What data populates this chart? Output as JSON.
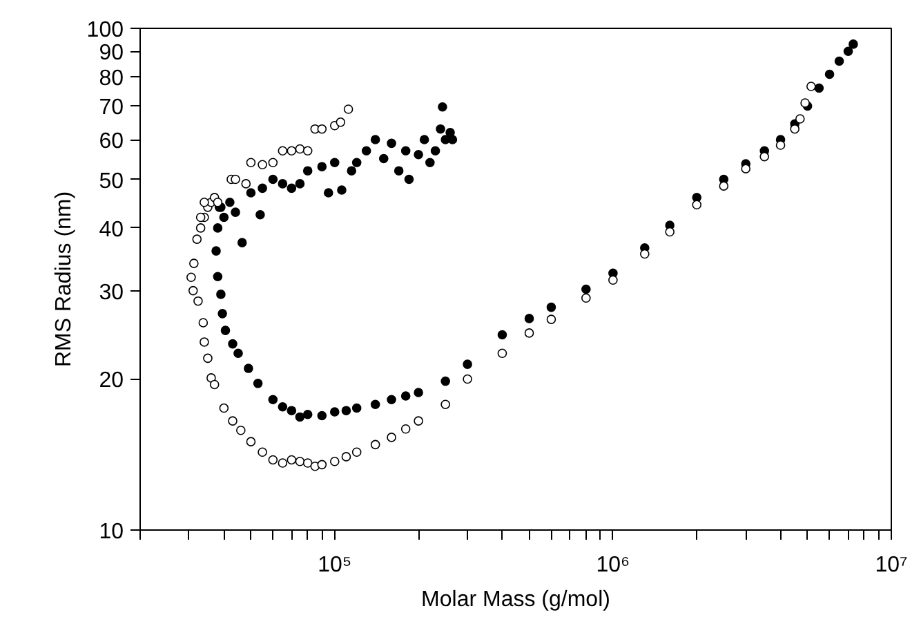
{
  "chart_data": {
    "type": "scatter",
    "xlabel": "Molar Mass (g/mol)",
    "ylabel": "RMS Radius (nm)",
    "log": "xy",
    "grid": false,
    "marker": "circle",
    "xlim": [
      20000,
      10000000
    ],
    "ylim": [
      10,
      100
    ],
    "xticks": [
      {
        "value": 20000,
        "label": null
      },
      {
        "value": 30000,
        "label": null
      },
      {
        "value": 40000,
        "label": null
      },
      {
        "value": 50000,
        "label": null
      },
      {
        "value": 60000,
        "label": null
      },
      {
        "value": 70000,
        "label": null
      },
      {
        "value": 80000,
        "label": null
      },
      {
        "value": 90000,
        "label": null
      },
      {
        "value": 100000,
        "label": "10⁵"
      },
      {
        "value": 200000,
        "label": null
      },
      {
        "value": 300000,
        "label": null
      },
      {
        "value": 400000,
        "label": null
      },
      {
        "value": 500000,
        "label": null
      },
      {
        "value": 600000,
        "label": null
      },
      {
        "value": 700000,
        "label": null
      },
      {
        "value": 800000,
        "label": null
      },
      {
        "value": 900000,
        "label": null
      },
      {
        "value": 1000000,
        "label": "10⁶"
      },
      {
        "value": 2000000,
        "label": null
      },
      {
        "value": 3000000,
        "label": null
      },
      {
        "value": 4000000,
        "label": null
      },
      {
        "value": 5000000,
        "label": null
      },
      {
        "value": 6000000,
        "label": null
      },
      {
        "value": 7000000,
        "label": null
      },
      {
        "value": 8000000,
        "label": null
      },
      {
        "value": 9000000,
        "label": null
      },
      {
        "value": 10000000,
        "label": "10⁷"
      }
    ],
    "yticks": [
      10,
      20,
      30,
      40,
      50,
      60,
      70,
      80,
      90,
      100
    ],
    "series": [
      {
        "color": "#000000",
        "x": [
          39000,
          40000,
          42000,
          44000,
          46500,
          50000,
          54000,
          55000,
          60000,
          65000,
          70000,
          75000,
          80000,
          90000,
          95000,
          100000,
          106000,
          115000,
          120000,
          130000,
          140000,
          150000,
          160000,
          170000,
          180000,
          185000,
          200000,
          210000,
          220000,
          230000,
          240000,
          244000,
          250000,
          260000,
          265000,
          38500,
          38000,
          37500,
          38000,
          39000,
          39500,
          40500,
          43000,
          45000,
          49000,
          53000,
          60000,
          65000,
          70000,
          75000,
          80000,
          90000,
          100000,
          110000,
          120000,
          140000,
          160000,
          180000,
          200000,
          250000,
          300000,
          400000,
          500000,
          600000,
          800000,
          1000000,
          1300000,
          1600000,
          2000000,
          2500000,
          3000000,
          3500000,
          4000000,
          4500000,
          5000000,
          5500000,
          6000000,
          6500000,
          7000000,
          7300000
        ],
        "values": [
          44,
          42,
          45,
          43,
          37.4,
          47,
          42.5,
          48,
          50,
          49,
          48,
          49,
          52,
          53,
          47,
          54,
          47.6,
          52,
          54,
          57,
          60,
          55,
          59,
          52,
          57,
          50,
          56,
          60,
          54,
          57,
          63,
          69.7,
          60,
          62,
          60,
          44,
          40,
          36,
          32,
          29.5,
          27,
          25,
          23.5,
          22.5,
          21,
          19.6,
          18.2,
          17.6,
          17.3,
          16.8,
          17,
          16.9,
          17.2,
          17.3,
          17.5,
          17.8,
          18.2,
          18.5,
          18.8,
          19.8,
          21.4,
          24.5,
          26.4,
          27.8,
          30.2,
          32.5,
          36.5,
          40.5,
          46,
          50,
          53.7,
          57,
          60,
          64.5,
          70,
          76,
          81,
          86,
          90,
          93
        ]
      },
      {
        "color": "#ffffff",
        "x": [
          33000,
          34000,
          35000,
          36000,
          37000,
          38000,
          42500,
          44000,
          48000,
          50000,
          55000,
          60000,
          65000,
          70000,
          75000,
          80000,
          85000,
          90000,
          100000,
          105000,
          112000,
          34000,
          33000,
          32000,
          31200,
          30500,
          31000,
          32300,
          33700,
          34000,
          35000,
          36000,
          37000,
          40000,
          43000,
          46000,
          50000,
          55000,
          60000,
          65000,
          70000,
          75000,
          80000,
          85000,
          90000,
          100000,
          110000,
          120000,
          140000,
          160000,
          180000,
          200000,
          250000,
          300000,
          400000,
          500000,
          600000,
          800000,
          1000000,
          1300000,
          1600000,
          2000000,
          2500000,
          3000000,
          3500000,
          4000000,
          4500000,
          4700000,
          4900000,
          5150000
        ],
        "values": [
          40,
          42,
          44,
          45,
          46,
          45,
          50,
          50,
          49,
          54,
          53.5,
          54,
          57,
          57,
          57.5,
          57,
          63,
          63,
          64,
          65,
          69,
          45,
          42,
          38,
          34,
          31.9,
          30,
          28.6,
          25.9,
          23.7,
          22,
          20.1,
          19.5,
          17.5,
          16.5,
          15.8,
          15,
          14.3,
          13.8,
          13.6,
          13.8,
          13.7,
          13.6,
          13.4,
          13.5,
          13.7,
          14,
          14.3,
          14.8,
          15.3,
          15.9,
          16.5,
          17.8,
          20,
          22.5,
          24.7,
          26.3,
          29,
          31.5,
          35.5,
          39.3,
          44.5,
          48.5,
          52.5,
          55.5,
          58.5,
          63,
          66,
          71,
          76.6
        ]
      }
    ]
  }
}
